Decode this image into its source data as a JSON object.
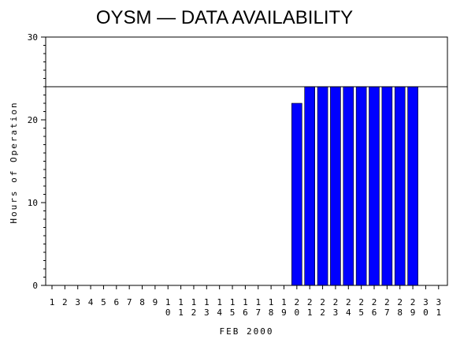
{
  "chart_data": {
    "type": "bar",
    "title": "OYSM — DATA AVAILABILITY",
    "xlabel": "FEB 2000",
    "ylabel": "Hours of Operation",
    "ylim": [
      0,
      30
    ],
    "yticks": [
      0,
      10,
      20,
      30
    ],
    "categories": [
      "1",
      "2",
      "3",
      "4",
      "5",
      "6",
      "7",
      "8",
      "9",
      "10",
      "11",
      "12",
      "13",
      "14",
      "15",
      "16",
      "17",
      "18",
      "19",
      "20",
      "21",
      "22",
      "23",
      "24",
      "25",
      "26",
      "27",
      "28",
      "29",
      "30",
      "31"
    ],
    "values": [
      0,
      0,
      0,
      0,
      0,
      0,
      0,
      0,
      0,
      0,
      0,
      0,
      0,
      0,
      0,
      0,
      0,
      0,
      0,
      22,
      24,
      24,
      24,
      24,
      24,
      24,
      24,
      24,
      24,
      0,
      0
    ],
    "reference_line": 24,
    "bar_color": "#0000ff",
    "grid": false,
    "legend": "none"
  }
}
